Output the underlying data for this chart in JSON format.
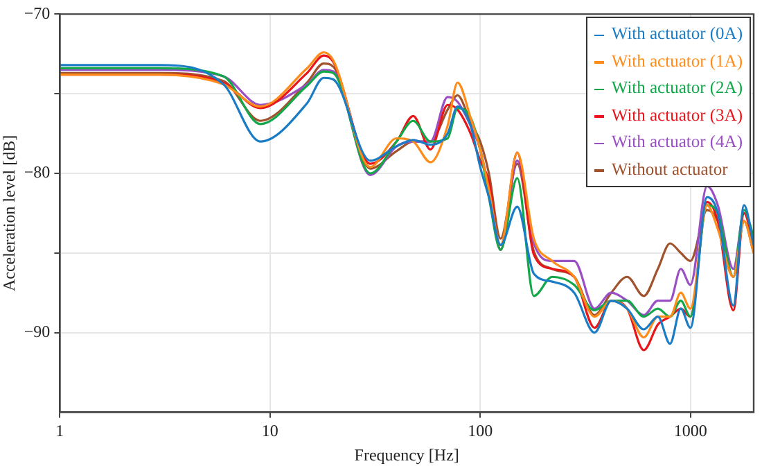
{
  "chart_data": {
    "type": "line",
    "xlabel": "Frequency [Hz]",
    "ylabel": "Acceleration level [dB]",
    "x": [
      1,
      3,
      6,
      9,
      15,
      18,
      20,
      30,
      40,
      48,
      58,
      70,
      78,
      90,
      100,
      110,
      125,
      150,
      180,
      220,
      280,
      350,
      420,
      500,
      600,
      700,
      800,
      900,
      1000,
      1200,
      1350,
      1600,
      1800,
      2000
    ],
    "log": "x",
    "xlim": [
      1,
      2000
    ],
    "xticks": [
      1,
      10,
      100,
      1000
    ],
    "ylim": [
      -95,
      -70
    ],
    "yticks": [
      -70,
      {
        "value": -75,
        "label": null
      },
      -80,
      {
        "value": -85,
        "label": null
      },
      -90
    ],
    "grid": true,
    "legend": "top right",
    "marker": "none",
    "line_style": "solid",
    "series": [
      {
        "name": "With actuator (0A)",
        "color": "#1a7cc4",
        "values": [
          -73.2,
          -73.2,
          -74.4,
          -78.0,
          -75.6,
          -74.0,
          -74.1,
          -79.2,
          -78.3,
          -77.9,
          -78.2,
          -77.5,
          -75.8,
          -77.0,
          -79.6,
          -81.5,
          -84.5,
          -82.1,
          -86.3,
          -86.8,
          -87.5,
          -90.0,
          -88.0,
          -88.5,
          -89.8,
          -89.0,
          -90.7,
          -88.5,
          -89.7,
          -81.5,
          -82.5,
          -88.3,
          -82.0,
          -84.5
        ]
      },
      {
        "name": "With actuator (1A)",
        "color": "#ff8c1a",
        "values": [
          -73.8,
          -73.8,
          -74.4,
          -75.8,
          -73.4,
          -72.4,
          -72.9,
          -79.6,
          -77.8,
          -78.0,
          -79.3,
          -77.0,
          -74.3,
          -76.5,
          -78.5,
          -81.0,
          -84.5,
          -78.7,
          -84.1,
          -85.5,
          -86.5,
          -89.0,
          -88.0,
          -88.5,
          -90.3,
          -89.0,
          -89.0,
          -87.5,
          -88.5,
          -82.0,
          -83.5,
          -86.5,
          -83.0,
          -85.0
        ]
      },
      {
        "name": "With actuator (2A)",
        "color": "#12a84a",
        "values": [
          -73.4,
          -73.4,
          -73.9,
          -76.9,
          -74.5,
          -73.6,
          -73.7,
          -80.0,
          -78.0,
          -76.7,
          -78.0,
          -77.8,
          -75.9,
          -76.5,
          -78.5,
          -81.5,
          -84.8,
          -80.3,
          -87.7,
          -86.5,
          -87.0,
          -88.6,
          -88.0,
          -88.0,
          -89.0,
          -88.5,
          -89.0,
          -88.0,
          -89.0,
          -82.0,
          -82.5,
          -86.5,
          -82.3,
          -84.0
        ]
      },
      {
        "name": "With actuator (3A)",
        "color": "#e8161b",
        "values": [
          -73.8,
          -73.8,
          -74.3,
          -75.9,
          -73.7,
          -72.6,
          -73.0,
          -79.4,
          -78.0,
          -76.4,
          -78.5,
          -75.7,
          -76.0,
          -77.5,
          -79.2,
          -80.5,
          -84.8,
          -78.7,
          -85.1,
          -86.0,
          -86.5,
          -89.7,
          -88.0,
          -88.5,
          -91.1,
          -89.5,
          -89.0,
          -88.5,
          -89.0,
          -81.8,
          -83.0,
          -88.6,
          -82.5,
          -84.5
        ]
      },
      {
        "name": "With actuator (4A)",
        "color": "#9b4fc5",
        "values": [
          -73.5,
          -73.5,
          -73.9,
          -75.7,
          -74.4,
          -73.5,
          -73.6,
          -80.1,
          -78.3,
          -78.0,
          -78.0,
          -75.2,
          -75.5,
          -77.0,
          -78.5,
          -81.0,
          -84.8,
          -79.2,
          -84.4,
          -85.5,
          -85.5,
          -88.5,
          -87.5,
          -88.0,
          -88.9,
          -88.0,
          -88.0,
          -86.0,
          -87.0,
          -80.8,
          -82.0,
          -86.0,
          -82.5,
          -84.0
        ]
      },
      {
        "name": "Without actuator",
        "color": "#a0522d",
        "values": [
          -73.7,
          -73.7,
          -74.2,
          -76.7,
          -74.3,
          -73.1,
          -73.3,
          -79.7,
          -78.6,
          -78.0,
          -78.0,
          -76.0,
          -75.1,
          -76.8,
          -78.0,
          -80.0,
          -84.1,
          -79.4,
          -84.9,
          -86.0,
          -86.5,
          -88.9,
          -87.5,
          -86.5,
          -87.7,
          -86.0,
          -84.4,
          -85.0,
          -85.5,
          -82.3,
          -83.0,
          -86.5,
          -83.0,
          -85.0
        ]
      }
    ]
  }
}
